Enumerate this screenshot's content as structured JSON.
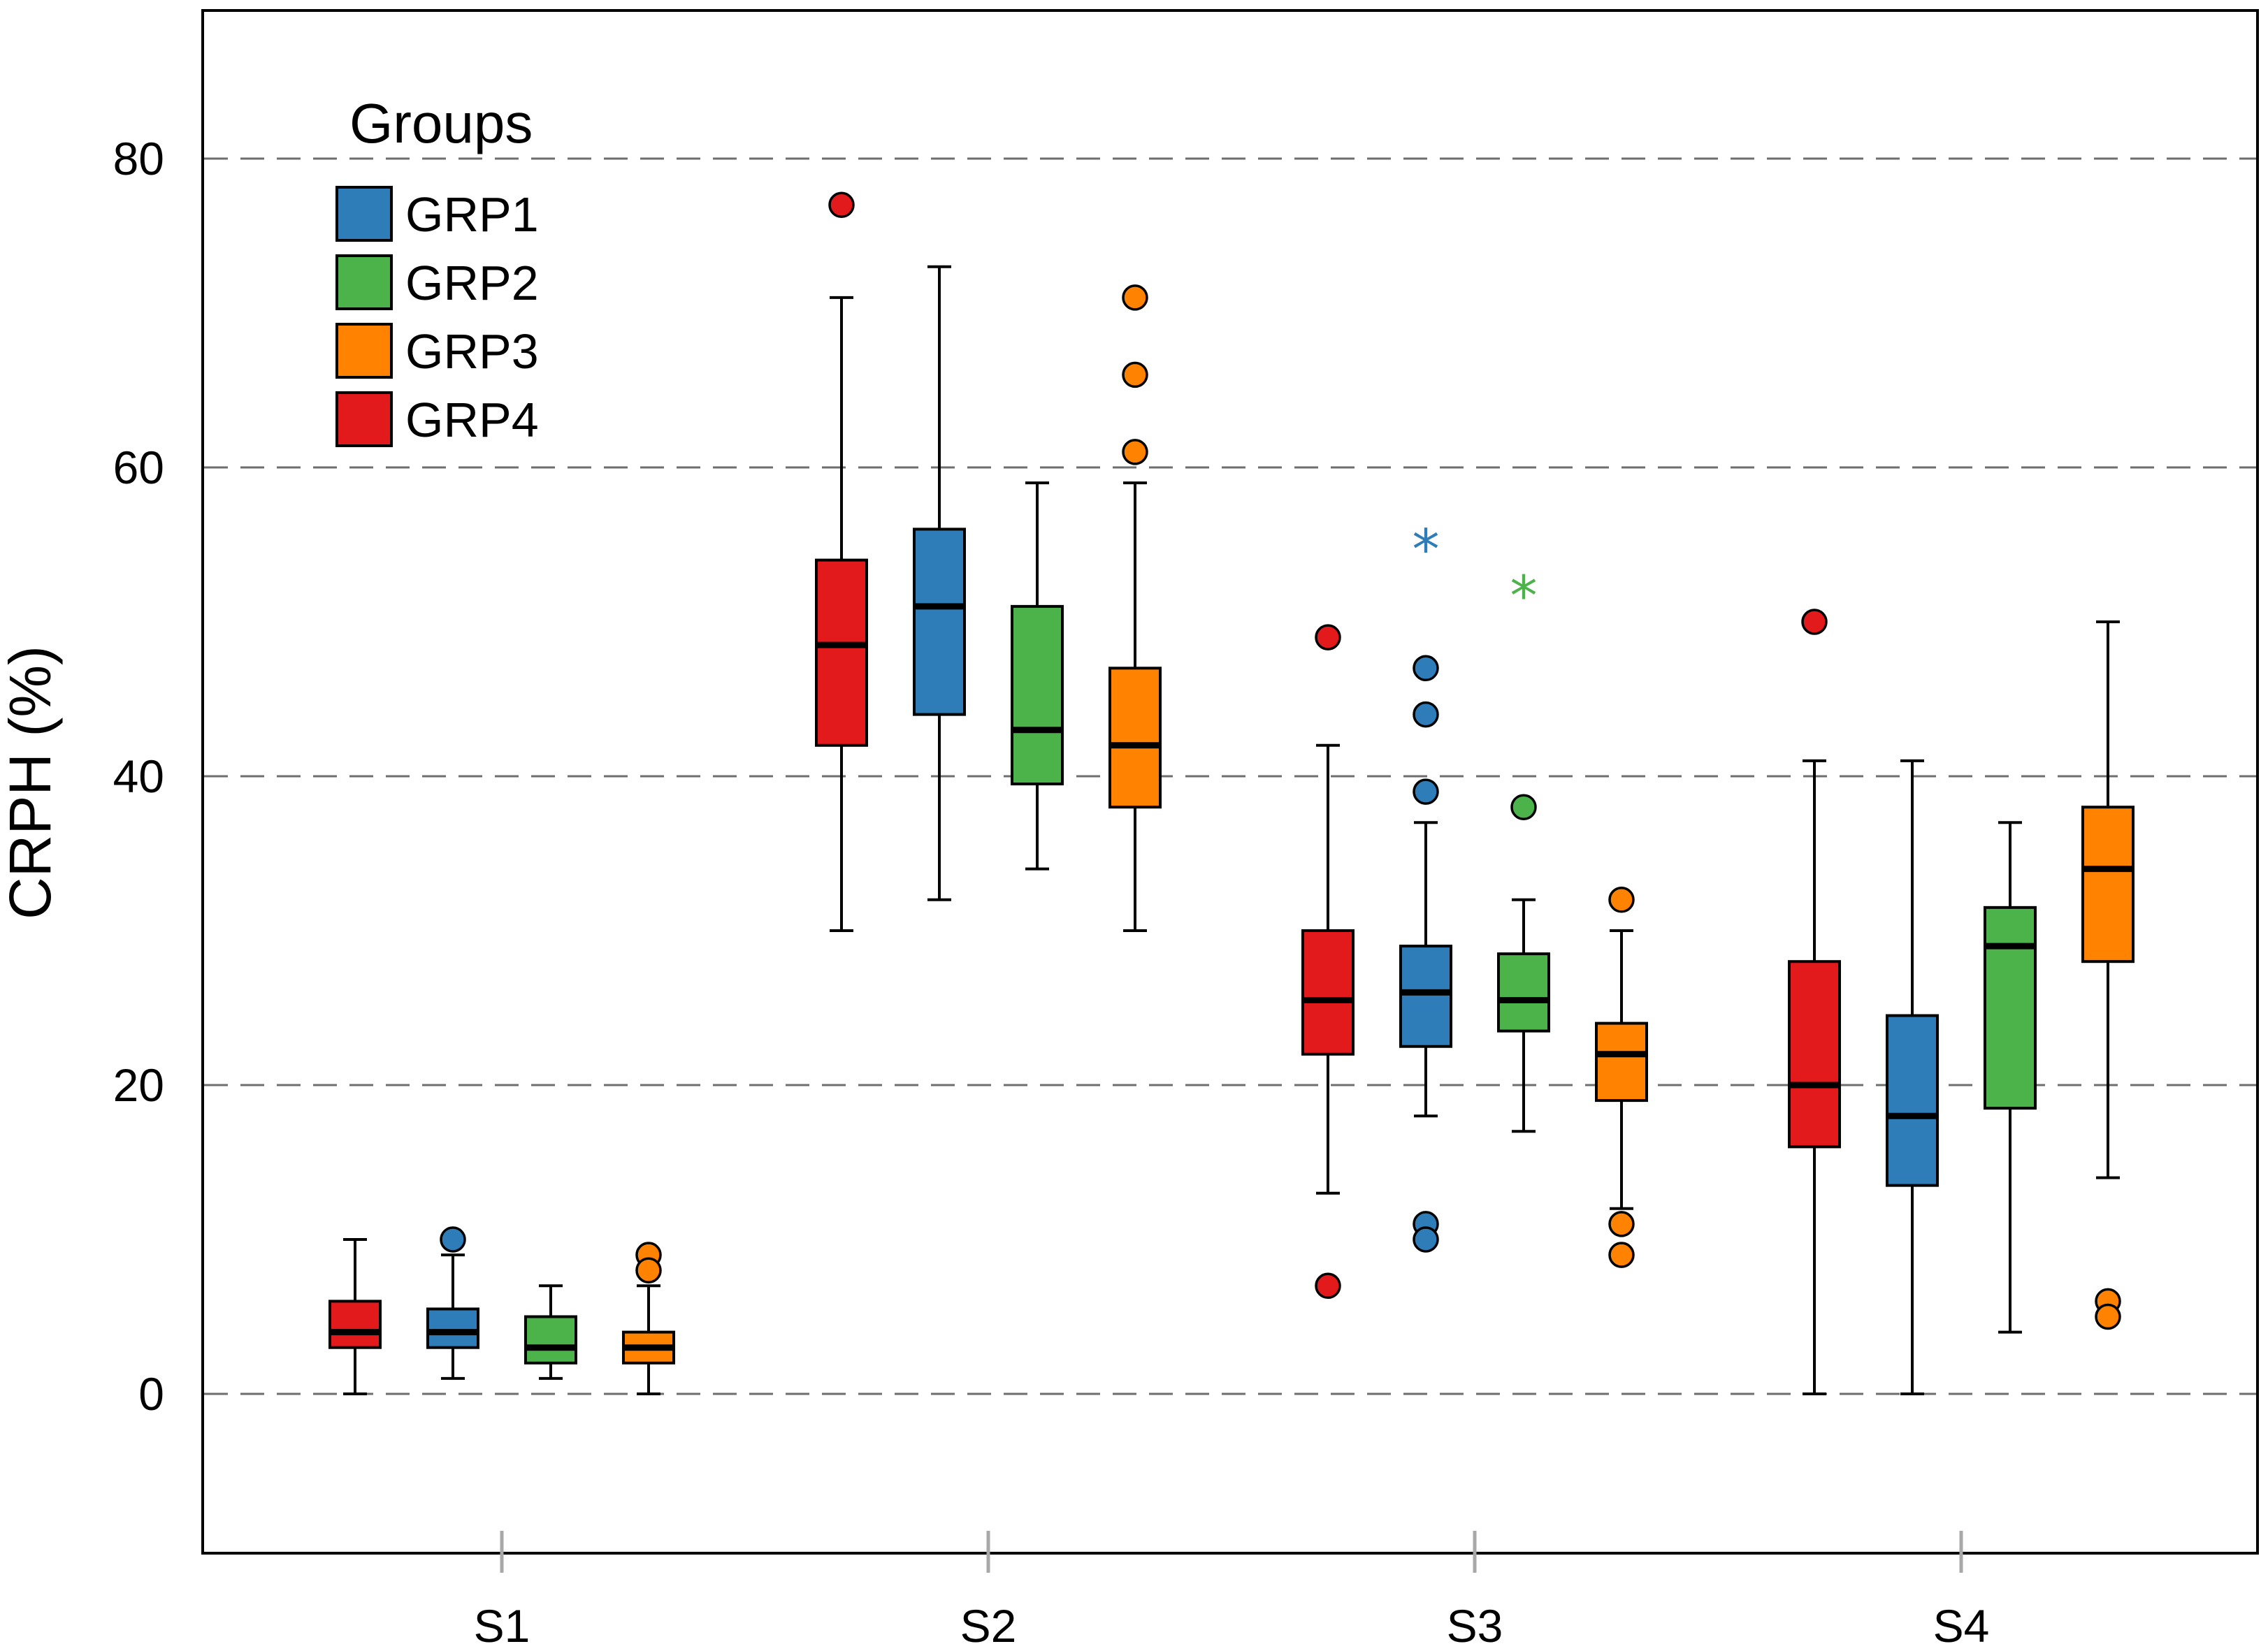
{
  "chart_data": {
    "type": "boxplot",
    "title": "",
    "xlabel": "",
    "ylabel": "CRPH (%)",
    "ylim": [
      -10,
      90
    ],
    "yticks": [
      0,
      20,
      40,
      60,
      80
    ],
    "grid": "horizontal-dashed",
    "categories": [
      "S1",
      "S2",
      "S3",
      "S4"
    ],
    "legend": {
      "title": "Groups",
      "position": "top-left",
      "entries": [
        {
          "label": "GRP1",
          "color": "#2f7db8"
        },
        {
          "label": "GRP2",
          "color": "#4cb24a"
        },
        {
          "label": "GRP3",
          "color": "#ff8200"
        },
        {
          "label": "GRP4",
          "color": "#e31a1c"
        }
      ]
    },
    "box_order": [
      "GRP4",
      "GRP1",
      "GRP2",
      "GRP3"
    ],
    "boxes": [
      {
        "category": "S1",
        "group": "GRP4",
        "min": 0,
        "q1": 3,
        "median": 4,
        "q3": 6,
        "max": 10,
        "outliers": [],
        "extremes": []
      },
      {
        "category": "S1",
        "group": "GRP1",
        "min": 1,
        "q1": 3,
        "median": 4,
        "q3": 5.5,
        "max": 9,
        "outliers": [
          10
        ],
        "extremes": []
      },
      {
        "category": "S1",
        "group": "GRP2",
        "min": 1,
        "q1": 2,
        "median": 3,
        "q3": 5,
        "max": 7,
        "outliers": [],
        "extremes": []
      },
      {
        "category": "S1",
        "group": "GRP3",
        "min": 0,
        "q1": 2,
        "median": 3,
        "q3": 4,
        "max": 7,
        "outliers": [
          9,
          8
        ],
        "extremes": []
      },
      {
        "category": "S2",
        "group": "GRP4",
        "min": 30,
        "q1": 42,
        "median": 48.5,
        "q3": 54,
        "max": 71,
        "outliers": [
          77
        ],
        "extremes": []
      },
      {
        "category": "S2",
        "group": "GRP1",
        "min": 32,
        "q1": 44,
        "median": 51,
        "q3": 56,
        "max": 73,
        "outliers": [],
        "extremes": []
      },
      {
        "category": "S2",
        "group": "GRP2",
        "min": 34,
        "q1": 39.5,
        "median": 43,
        "q3": 51,
        "max": 59,
        "outliers": [],
        "extremes": []
      },
      {
        "category": "S2",
        "group": "GRP3",
        "min": 30,
        "q1": 38,
        "median": 42,
        "q3": 47,
        "max": 59,
        "outliers": [
          71,
          66,
          61
        ],
        "extremes": []
      },
      {
        "category": "S3",
        "group": "GRP4",
        "min": 13,
        "q1": 22,
        "median": 25.5,
        "q3": 30,
        "max": 42,
        "outliers": [
          49,
          7
        ],
        "extremes": []
      },
      {
        "category": "S3",
        "group": "GRP1",
        "min": 18,
        "q1": 22.5,
        "median": 26,
        "q3": 29,
        "max": 37,
        "outliers": [
          47,
          44,
          39,
          11,
          10
        ],
        "extremes": [
          55
        ]
      },
      {
        "category": "S3",
        "group": "GRP2",
        "min": 17,
        "q1": 23.5,
        "median": 25.5,
        "q3": 28.5,
        "max": 32,
        "outliers": [
          38
        ],
        "extremes": [
          52
        ]
      },
      {
        "category": "S3",
        "group": "GRP3",
        "min": 12,
        "q1": 19,
        "median": 22,
        "q3": 24,
        "max": 30,
        "outliers": [
          32,
          11,
          9
        ],
        "extremes": []
      },
      {
        "category": "S4",
        "group": "GRP4",
        "min": 0,
        "q1": 16,
        "median": 20,
        "q3": 28,
        "max": 41,
        "outliers": [
          50
        ],
        "extremes": []
      },
      {
        "category": "S4",
        "group": "GRP1",
        "min": 0,
        "q1": 13.5,
        "median": 18,
        "q3": 24.5,
        "max": 41,
        "outliers": [],
        "extremes": []
      },
      {
        "category": "S4",
        "group": "GRP2",
        "min": 4,
        "q1": 18.5,
        "median": 29,
        "q3": 31.5,
        "max": 37,
        "outliers": [],
        "extremes": []
      },
      {
        "category": "S4",
        "group": "GRP3",
        "min": 14,
        "q1": 28,
        "median": 34,
        "q3": 38,
        "max": 50,
        "outliers": [
          6,
          5
        ],
        "extremes": []
      }
    ]
  }
}
